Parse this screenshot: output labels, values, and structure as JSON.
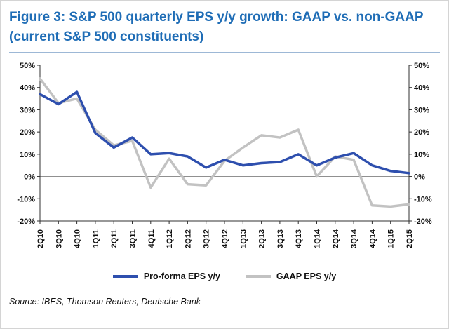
{
  "header": {
    "title": "Figure 3: S&P 500 quarterly EPS y/y growth: GAAP vs. non-GAAP (current S&P 500 constituents)"
  },
  "footer": {
    "source": "Source: IBES, Thomson Reuters, Deutsche Bank"
  },
  "colors": {
    "title": "#1f6db6",
    "title_rule": "#9db8d6",
    "footer_rule": "#a0a0a0",
    "proforma_line": "#2e4fae",
    "gaap_line": "#c2c2c2",
    "axis": "#303030",
    "zero_line": "#808080",
    "tick_label": "#111111"
  },
  "chart_data": {
    "type": "line",
    "categories": [
      "2Q10",
      "3Q10",
      "4Q10",
      "1Q11",
      "2Q11",
      "3Q11",
      "4Q11",
      "1Q12",
      "2Q12",
      "3Q12",
      "4Q12",
      "1Q13",
      "2Q13",
      "3Q13",
      "4Q13",
      "1Q14",
      "2Q14",
      "3Q14",
      "4Q14",
      "1Q15",
      "2Q15"
    ],
    "series": [
      {
        "name": "Pro-forma EPS y/y",
        "color_key": "proforma_line",
        "width": 3.5,
        "values": [
          37,
          32.5,
          38,
          19.5,
          13,
          17.5,
          10,
          10.5,
          9,
          4,
          7.5,
          5,
          6,
          6.5,
          10,
          5,
          8.5,
          10.5,
          5,
          2.5,
          1.5
        ]
      },
      {
        "name": "GAAP EPS y/y",
        "color_key": "gaap_line",
        "width": 3.5,
        "values": [
          44,
          33,
          35,
          21,
          14,
          16,
          -5,
          8,
          -3.5,
          -4,
          7,
          13,
          18.5,
          17.5,
          21,
          0,
          9,
          7.5,
          -13,
          -13.5,
          -12.5
        ]
      }
    ],
    "ylim": [
      -20,
      50
    ],
    "ytick_step": 10,
    "ytick_suffix": "%",
    "y_axis_sides": "both",
    "grid": false,
    "legend_position": "bottom"
  }
}
